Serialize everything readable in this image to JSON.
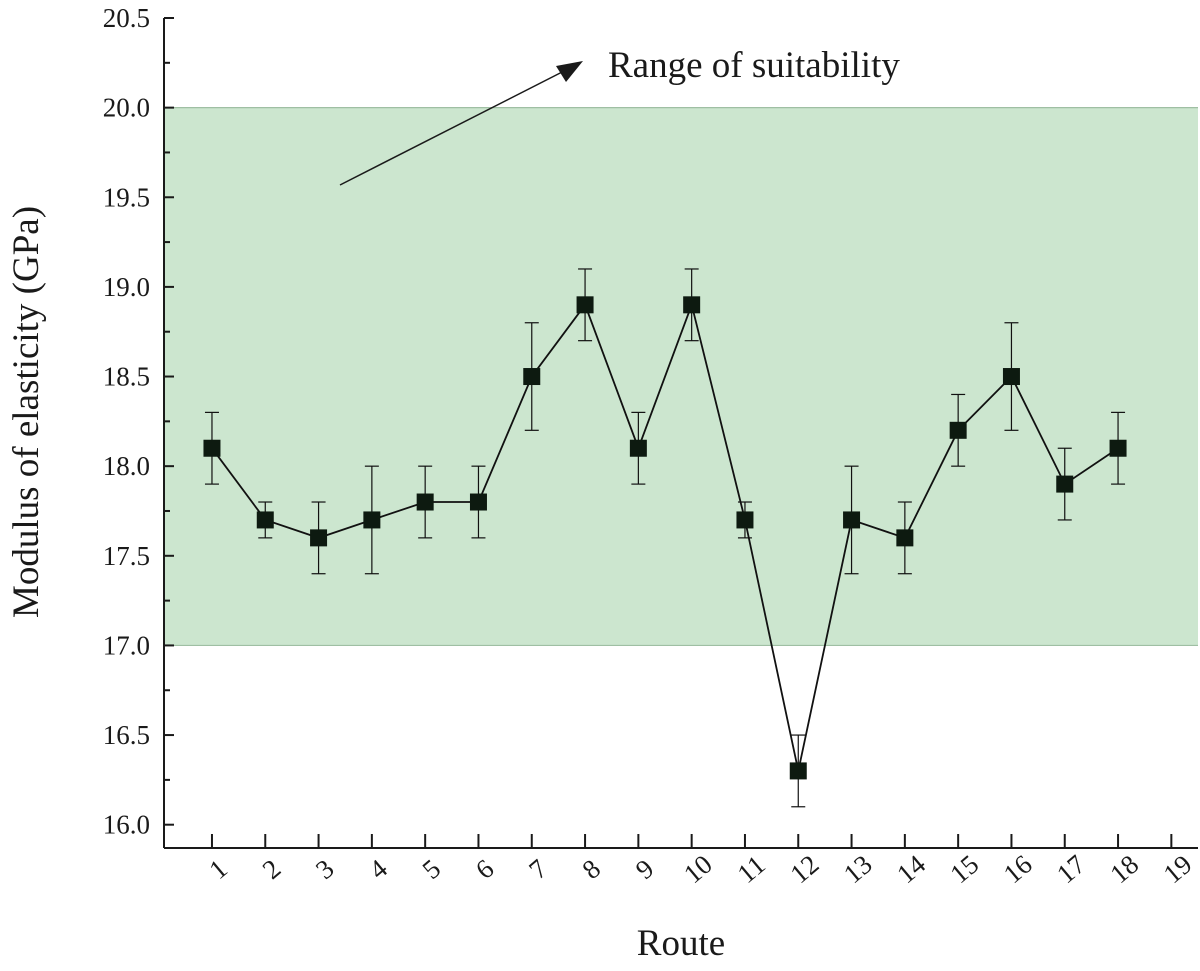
{
  "chart_data": {
    "type": "line",
    "xlabel": "Route",
    "ylabel": "Modulus of elasticity (GPa)",
    "x_ticks": [
      "1",
      "2",
      "3",
      "4",
      "5",
      "6",
      "7",
      "8",
      "9",
      "10",
      "11",
      "12",
      "13",
      "14",
      "15",
      "16",
      "17",
      "18",
      "19"
    ],
    "y_ticks": [
      "16.0",
      "16.5",
      "17.0",
      "17.5",
      "18.0",
      "18.5",
      "19.0",
      "19.5",
      "20.0",
      "20.5"
    ],
    "ylim": [
      15.87,
      20.5
    ],
    "xlim": [
      0.1,
      19.5
    ],
    "x": [
      1,
      2,
      3,
      4,
      5,
      6,
      7,
      8,
      9,
      10,
      11,
      12,
      13,
      14,
      15,
      16,
      17,
      18
    ],
    "y": [
      18.1,
      17.7,
      17.6,
      17.7,
      17.8,
      17.8,
      18.5,
      18.9,
      18.1,
      18.9,
      17.7,
      16.3,
      17.7,
      17.6,
      18.2,
      18.5,
      17.9,
      18.1
    ],
    "err_low": [
      17.9,
      17.6,
      17.4,
      17.4,
      17.6,
      17.6,
      18.2,
      18.7,
      17.9,
      18.7,
      17.6,
      16.1,
      17.4,
      17.4,
      18.0,
      18.2,
      17.7,
      17.9
    ],
    "err_high": [
      18.3,
      17.8,
      17.8,
      18.0,
      18.0,
      18.0,
      18.8,
      19.1,
      18.3,
      19.1,
      17.8,
      16.5,
      18.0,
      17.8,
      18.4,
      18.8,
      18.1,
      18.3
    ],
    "band": {
      "low": 17.0,
      "high": 20.0,
      "label": "Range of suitability"
    },
    "colors": {
      "band": "#cce6cf",
      "band_edge": "#9fbfa3",
      "line": "#111111",
      "marker": "#0d1a10",
      "axis": "#1a1a1a"
    },
    "grid": false
  }
}
